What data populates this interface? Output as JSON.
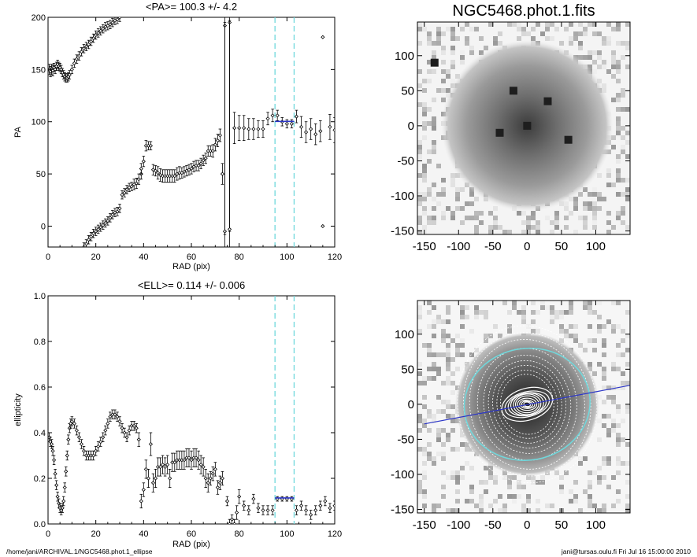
{
  "footer": {
    "left": "/home/jani/ARCHIVAL.1/NGC5468.phot.1_ellipse",
    "right": "jani@tursas.oulu.fi  Fri Jul 16 15:00:00 2010"
  },
  "colors": {
    "markers": "#000000",
    "mean_fit": "#2b35c8",
    "window_lines": "#6fd8dc",
    "pa_line": "#2b35c8",
    "ellipses": "#ffffff",
    "grey_image": "#808080"
  },
  "chart_data": [
    {
      "type": "scatter",
      "title": "<PA>= 100.3 +/-   4.2",
      "xlabel": "RAD (pix)",
      "ylabel": "PA",
      "xlim": [
        0,
        120
      ],
      "ylim": [
        -20,
        200
      ],
      "xticks": [
        "0",
        "20",
        "40",
        "60",
        "80",
        "100",
        "120"
      ],
      "yticks": [
        "0",
        "50",
        "100",
        "150",
        "200"
      ],
      "xtick_values": [
        0,
        20,
        40,
        60,
        80,
        100,
        120
      ],
      "ytick_values": [
        0,
        50,
        100,
        150,
        200
      ],
      "window": [
        95,
        103
      ],
      "mean": {
        "x": [
          95,
          103
        ],
        "y": 100.3
      },
      "points": [
        [
          0.5,
          150,
          5
        ],
        [
          1,
          148,
          5
        ],
        [
          1.5,
          150,
          5
        ],
        [
          2,
          149,
          5
        ],
        [
          2.5,
          152,
          4
        ],
        [
          3,
          150,
          4
        ],
        [
          3.5,
          153,
          4
        ],
        [
          4,
          155,
          4
        ],
        [
          4.5,
          153,
          4
        ],
        [
          5,
          152,
          4
        ],
        [
          5.5,
          150,
          4
        ],
        [
          6,
          147,
          4
        ],
        [
          6.5,
          145,
          4
        ],
        [
          7,
          143,
          4
        ],
        [
          7.5,
          142,
          4
        ],
        [
          8,
          142,
          4
        ],
        [
          8.5,
          143,
          4
        ],
        [
          9,
          145,
          4
        ],
        [
          10,
          150,
          4
        ],
        [
          11,
          156,
          4
        ],
        [
          12,
          160,
          4
        ],
        [
          13,
          163,
          4
        ],
        [
          14,
          167,
          4
        ],
        [
          15,
          170,
          4
        ],
        [
          16,
          172,
          4
        ],
        [
          17,
          174,
          4
        ],
        [
          18,
          177,
          4
        ],
        [
          19,
          180,
          4
        ],
        [
          20,
          183,
          4
        ],
        [
          21,
          185,
          4
        ],
        [
          22,
          187,
          4
        ],
        [
          23,
          189,
          4
        ],
        [
          24,
          191,
          4
        ],
        [
          25,
          192,
          4
        ],
        [
          26,
          193,
          4
        ],
        [
          27,
          195,
          4
        ],
        [
          28,
          197,
          4
        ],
        [
          29,
          198,
          4
        ],
        [
          30,
          200,
          4
        ],
        [
          15,
          -20,
          4
        ],
        [
          16,
          -17,
          4
        ],
        [
          17,
          -13,
          4
        ],
        [
          18,
          -10,
          4
        ],
        [
          19,
          -7,
          4
        ],
        [
          20,
          -5,
          4
        ],
        [
          21,
          -3,
          4
        ],
        [
          22,
          -1,
          4
        ],
        [
          23,
          1,
          4
        ],
        [
          24,
          3,
          4
        ],
        [
          25,
          5,
          4
        ],
        [
          26,
          8,
          4
        ],
        [
          27,
          11,
          4
        ],
        [
          28,
          13,
          4
        ],
        [
          29,
          14,
          4
        ],
        [
          30,
          17,
          4
        ],
        [
          31,
          30,
          4
        ],
        [
          32,
          32,
          4
        ],
        [
          33,
          35,
          4
        ],
        [
          34,
          37,
          4
        ],
        [
          35,
          38,
          4
        ],
        [
          36,
          40,
          5
        ],
        [
          37,
          41,
          5
        ],
        [
          38,
          45,
          5
        ],
        [
          39,
          50,
          5
        ],
        [
          40,
          62,
          5
        ],
        [
          41,
          77,
          5
        ],
        [
          42,
          77,
          4
        ],
        [
          43,
          77,
          4
        ],
        [
          39,
          55,
          5
        ],
        [
          44,
          54,
          5
        ],
        [
          45,
          53,
          5
        ],
        [
          46,
          51,
          6
        ],
        [
          47,
          49,
          6
        ],
        [
          48,
          48,
          6
        ],
        [
          49,
          48,
          6
        ],
        [
          50,
          48,
          6
        ],
        [
          51,
          48,
          6
        ],
        [
          52,
          48,
          6
        ],
        [
          53,
          48,
          6
        ],
        [
          54,
          50,
          6
        ],
        [
          55,
          51,
          6
        ],
        [
          56,
          51,
          5
        ],
        [
          57,
          52,
          5
        ],
        [
          58,
          53,
          5
        ],
        [
          59,
          54,
          5
        ],
        [
          60,
          55,
          5
        ],
        [
          61,
          57,
          5
        ],
        [
          62,
          58,
          5
        ],
        [
          63,
          58,
          5
        ],
        [
          64,
          60,
          5
        ],
        [
          65,
          63,
          5
        ],
        [
          66,
          65,
          5
        ],
        [
          67,
          72,
          5
        ],
        [
          68,
          72,
          5
        ],
        [
          69,
          72,
          6
        ],
        [
          70,
          78,
          6
        ],
        [
          71,
          82,
          6
        ],
        [
          72,
          87,
          6
        ],
        [
          73,
          50,
          10
        ],
        [
          74,
          192,
          200
        ],
        [
          74,
          -5,
          200
        ],
        [
          76,
          195,
          200
        ],
        [
          76,
          -3,
          200
        ],
        [
          78,
          94,
          15
        ],
        [
          80,
          94,
          12
        ],
        [
          82,
          94,
          12
        ],
        [
          84,
          93,
          10
        ],
        [
          86,
          93,
          10
        ],
        [
          88,
          93,
          8
        ],
        [
          90,
          93,
          8
        ],
        [
          92,
          103,
          6
        ],
        [
          94,
          106,
          6
        ],
        [
          96,
          106,
          5
        ],
        [
          98,
          100,
          4
        ],
        [
          100,
          98,
          4
        ],
        [
          102,
          98,
          4
        ],
        [
          104,
          105,
          6
        ],
        [
          106,
          95,
          10
        ],
        [
          108,
          90,
          10
        ],
        [
          110,
          93,
          10
        ],
        [
          112,
          88,
          10
        ],
        [
          114,
          91,
          10
        ],
        [
          115,
          181,
          0
        ],
        [
          115,
          0,
          0
        ],
        [
          118,
          95,
          12
        ],
        [
          120,
          92,
          12
        ]
      ]
    },
    {
      "type": "scatter",
      "title": "<ELL>= 0.114 +/-  0.006",
      "xlabel": "RAD (pix)",
      "ylabel": "ellipticity",
      "xlim": [
        0,
        120
      ],
      "ylim": [
        0,
        1
      ],
      "xticks": [
        "0",
        "20",
        "40",
        "60",
        "80",
        "100",
        "120"
      ],
      "yticks": [
        "0.0",
        "0.2",
        "0.4",
        "0.6",
        "0.8",
        "1.0"
      ],
      "xtick_values": [
        0,
        20,
        40,
        60,
        80,
        100,
        120
      ],
      "ytick_values": [
        0,
        0.2,
        0.4,
        0.6,
        0.8,
        1.0
      ],
      "window": [
        95,
        103
      ],
      "mean": {
        "x": [
          95,
          103
        ],
        "y": 0.114
      },
      "points": [
        [
          0.5,
          0.38,
          0.02
        ],
        [
          1,
          0.36,
          0.02
        ],
        [
          1.5,
          0.35,
          0.02
        ],
        [
          2,
          0.32,
          0.02
        ],
        [
          2.5,
          0.28,
          0.02
        ],
        [
          3,
          0.22,
          0.02
        ],
        [
          3.5,
          0.17,
          0.02
        ],
        [
          4,
          0.12,
          0.02
        ],
        [
          4.5,
          0.09,
          0.02
        ],
        [
          5,
          0.07,
          0.02
        ],
        [
          5.5,
          0.06,
          0.02
        ],
        [
          6,
          0.07,
          0.02
        ],
        [
          6.5,
          0.1,
          0.02
        ],
        [
          7,
          0.16,
          0.02
        ],
        [
          7.5,
          0.23,
          0.02
        ],
        [
          8,
          0.3,
          0.02
        ],
        [
          8.5,
          0.37,
          0.02
        ],
        [
          9,
          0.42,
          0.02
        ],
        [
          9.5,
          0.44,
          0.02
        ],
        [
          10,
          0.45,
          0.02
        ],
        [
          11,
          0.44,
          0.02
        ],
        [
          12,
          0.41,
          0.02
        ],
        [
          13,
          0.38,
          0.02
        ],
        [
          14,
          0.35,
          0.02
        ],
        [
          15,
          0.32,
          0.02
        ],
        [
          16,
          0.3,
          0.02
        ],
        [
          17,
          0.3,
          0.02
        ],
        [
          18,
          0.3,
          0.02
        ],
        [
          19,
          0.3,
          0.02
        ],
        [
          20,
          0.32,
          0.02
        ],
        [
          21,
          0.34,
          0.02
        ],
        [
          22,
          0.36,
          0.02
        ],
        [
          23,
          0.38,
          0.02
        ],
        [
          24,
          0.41,
          0.02
        ],
        [
          25,
          0.44,
          0.02
        ],
        [
          26,
          0.47,
          0.02
        ],
        [
          27,
          0.48,
          0.02
        ],
        [
          28,
          0.48,
          0.02
        ],
        [
          29,
          0.47,
          0.02
        ],
        [
          30,
          0.45,
          0.02
        ],
        [
          31,
          0.42,
          0.02
        ],
        [
          32,
          0.4,
          0.02
        ],
        [
          33,
          0.38,
          0.02
        ],
        [
          34,
          0.41,
          0.02
        ],
        [
          35,
          0.43,
          0.02
        ],
        [
          36,
          0.43,
          0.02
        ],
        [
          37,
          0.42,
          0.02
        ],
        [
          38,
          0.37,
          0.03
        ],
        [
          39,
          0.1,
          0.03
        ],
        [
          40,
          0.15,
          0.03
        ],
        [
          41,
          0.24,
          0.04
        ],
        [
          42,
          0.2,
          0.04
        ],
        [
          43,
          0.35,
          0.05
        ],
        [
          44,
          0.18,
          0.04
        ],
        [
          45,
          0.2,
          0.04
        ],
        [
          46,
          0.25,
          0.04
        ],
        [
          47,
          0.25,
          0.04
        ],
        [
          48,
          0.26,
          0.04
        ],
        [
          49,
          0.25,
          0.04
        ],
        [
          50,
          0.26,
          0.04
        ],
        [
          51,
          0.2,
          0.04
        ],
        [
          52,
          0.27,
          0.04
        ],
        [
          53,
          0.27,
          0.04
        ],
        [
          54,
          0.28,
          0.04
        ],
        [
          55,
          0.28,
          0.04
        ],
        [
          56,
          0.28,
          0.04
        ],
        [
          57,
          0.28,
          0.04
        ],
        [
          58,
          0.29,
          0.04
        ],
        [
          59,
          0.29,
          0.04
        ],
        [
          60,
          0.28,
          0.04
        ],
        [
          61,
          0.29,
          0.04
        ],
        [
          62,
          0.29,
          0.04
        ],
        [
          63,
          0.28,
          0.04
        ],
        [
          64,
          0.26,
          0.04
        ],
        [
          65,
          0.25,
          0.04
        ],
        [
          66,
          0.2,
          0.04
        ],
        [
          67,
          0.18,
          0.04
        ],
        [
          68,
          0.2,
          0.03
        ],
        [
          69,
          0.22,
          0.03
        ],
        [
          70,
          0.24,
          0.03
        ],
        [
          71,
          0.16,
          0.03
        ],
        [
          72,
          0.18,
          0.03
        ],
        [
          73,
          0.2,
          0.03
        ],
        [
          75,
          0.1,
          0.02
        ],
        [
          76,
          0.0,
          0.02
        ],
        [
          77,
          0.02,
          0.02
        ],
        [
          78,
          0.0,
          0.02
        ],
        [
          79,
          0.05,
          0.03
        ],
        [
          80,
          0.12,
          0.03
        ],
        [
          82,
          0.08,
          0.02
        ],
        [
          84,
          0.06,
          0.02
        ],
        [
          86,
          0.11,
          0.02
        ],
        [
          88,
          0.07,
          0.02
        ],
        [
          90,
          0.06,
          0.02
        ],
        [
          92,
          0.06,
          0.02
        ],
        [
          94,
          0.06,
          0.02
        ],
        [
          96,
          0.11,
          0.01
        ],
        [
          98,
          0.11,
          0.01
        ],
        [
          100,
          0.11,
          0.01
        ],
        [
          102,
          0.11,
          0.01
        ],
        [
          104,
          0.06,
          0.02
        ],
        [
          106,
          0.08,
          0.02
        ],
        [
          108,
          0.06,
          0.02
        ],
        [
          110,
          0.04,
          0.02
        ],
        [
          112,
          0.06,
          0.02
        ],
        [
          114,
          0.08,
          0.02
        ],
        [
          116,
          0.1,
          0.02
        ],
        [
          118,
          0.07,
          0.02
        ],
        [
          120,
          0.08,
          0.02
        ]
      ]
    },
    {
      "type": "heatmap",
      "title": "NGC5468.phot.1.fits",
      "xlim": [
        -160,
        150
      ],
      "ylim": [
        -155,
        148
      ],
      "xticks": [
        "-150",
        "-100",
        "-50",
        "0",
        "50",
        "100"
      ],
      "yticks": [
        "100",
        "50",
        "0",
        "-50",
        "-100",
        "-150"
      ],
      "xtick_values": [
        -150,
        -100,
        -50,
        0,
        50,
        100
      ],
      "ytick_values": [
        100,
        50,
        0,
        -50,
        -100,
        -150
      ],
      "galaxy_center": [
        0,
        0
      ],
      "disk_radius": 125,
      "bright_knots": [
        [
          -135,
          90
        ],
        [
          0,
          0
        ],
        [
          -40,
          -10
        ],
        [
          30,
          35
        ],
        [
          -20,
          50
        ],
        [
          60,
          -20
        ]
      ]
    },
    {
      "type": "heatmap",
      "title": "",
      "xlim": [
        -160,
        150
      ],
      "ylim": [
        -155,
        148
      ],
      "xticks": [
        "-150",
        "-100",
        "-50",
        "0",
        "50",
        "100"
      ],
      "yticks": [
        "100",
        "50",
        "0",
        "-50",
        "-100",
        "-150"
      ],
      "xtick_values": [
        -150,
        -100,
        -50,
        0,
        50,
        100
      ],
      "ytick_values": [
        100,
        50,
        0,
        -50,
        -100,
        -150
      ],
      "pa_line": [
        [
          -150,
          -28
        ],
        [
          150,
          27
        ]
      ],
      "mean_ellipse": {
        "a": 92,
        "ell": 0.114,
        "pa_deg": 100.3
      },
      "ellipse_radii": [
        5,
        8,
        11,
        14,
        17,
        20,
        24,
        28,
        33,
        38,
        44,
        50,
        57,
        64,
        72,
        82,
        95,
        105,
        115
      ]
    }
  ]
}
